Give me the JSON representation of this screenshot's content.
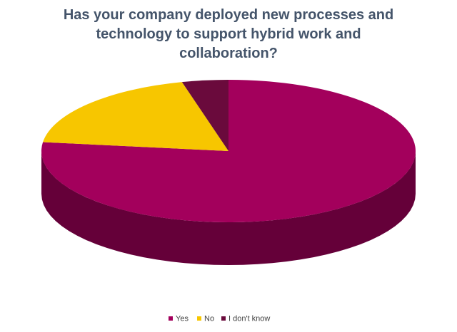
{
  "chart_data": {
    "type": "pie3d",
    "title": "Has your company deployed new processes and technology to support hybrid work and collaboration?",
    "categories": [
      "Yes",
      "No",
      "I don't know"
    ],
    "values": [
      77,
      19,
      4
    ],
    "colors": [
      "#a3005c",
      "#f7c600",
      "#6a0a3c"
    ],
    "legend": "bottom"
  }
}
